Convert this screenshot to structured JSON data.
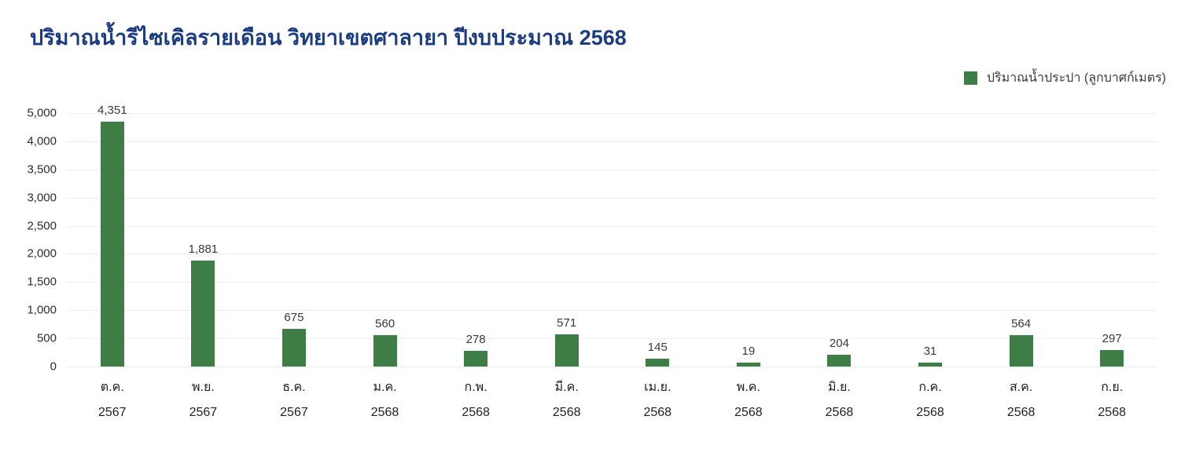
{
  "title": "ปริมาณน้ำรีไซเคิลรายเดือน วิทยาเขตศาลายา ปีงบประมาณ 2568",
  "legend": {
    "label": "ปริมาณน้ำประปา (ลูกบาศก์เมตร)"
  },
  "colors": {
    "title": "#1c3c80",
    "bar": "#3e7d46",
    "grid": "#ededed"
  },
  "chart_data": {
    "type": "bar",
    "title": "ปริมาณน้ำรีไซเคิลรายเดือน วิทยาเขตศาลายา ปีงบประมาณ 2568",
    "series_name": "ปริมาณน้ำประปา (ลูกบาศก์เมตร)",
    "categories": [
      {
        "month": "ต.ค.",
        "year": "2567"
      },
      {
        "month": "พ.ย.",
        "year": "2567"
      },
      {
        "month": "ธ.ค.",
        "year": "2567"
      },
      {
        "month": "ม.ค.",
        "year": "2568"
      },
      {
        "month": "ก.พ.",
        "year": "2568"
      },
      {
        "month": "มี.ค.",
        "year": "2568"
      },
      {
        "month": "เม.ย.",
        "year": "2568"
      },
      {
        "month": "พ.ค.",
        "year": "2568"
      },
      {
        "month": "มิ.ย.",
        "year": "2568"
      },
      {
        "month": "ก.ค.",
        "year": "2568"
      },
      {
        "month": "ส.ค.",
        "year": "2568"
      },
      {
        "month": "ก.ย.",
        "year": "2568"
      }
    ],
    "values": [
      4351,
      1881,
      675,
      560,
      278,
      571,
      145,
      19,
      204,
      31,
      564,
      297
    ],
    "value_labels": [
      "4,351",
      "1,881",
      "675",
      "560",
      "278",
      "571",
      "145",
      "19",
      "204",
      "31",
      "564",
      "297"
    ],
    "xlabel": "",
    "ylabel": "",
    "y_ticks": [
      "5,000",
      "4,000",
      "3,500",
      "3,000",
      "2,500",
      "2,000",
      "1,500",
      "1,000",
      "500",
      "0"
    ],
    "y_scale_max": 4500,
    "ylim": [
      0,
      4500
    ],
    "grid": true,
    "legend_position": "top-right",
    "bar_color": "#3e7d46"
  }
}
